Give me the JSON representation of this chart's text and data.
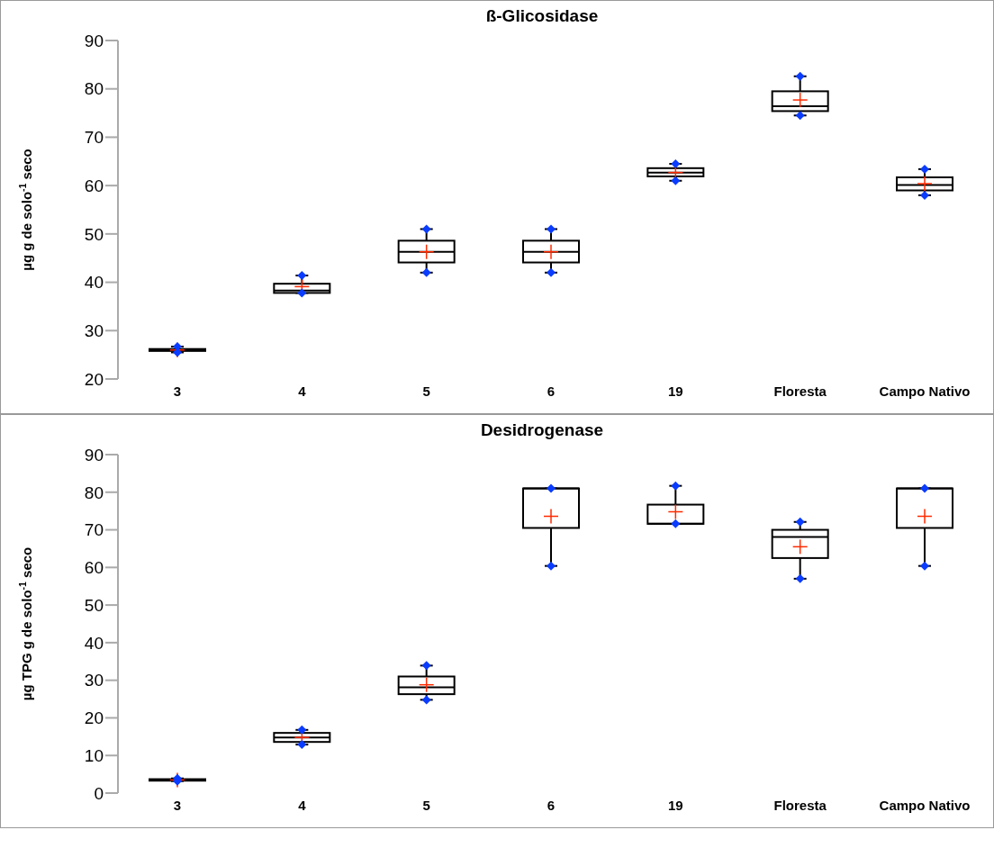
{
  "chart_data": [
    {
      "type": "box",
      "title": "ß-Glicosidase",
      "ylabel": "µg g de solo$^{-1}$ seco",
      "categories": [
        "3",
        "4",
        "5",
        "6",
        "19",
        "Floresta",
        "Campo Nativo"
      ],
      "ylim": [
        20,
        90
      ],
      "yticks": [
        20,
        30,
        40,
        50,
        60,
        70,
        80,
        90
      ],
      "grid": false,
      "boxes": [
        {
          "low": 25.5,
          "q1": 25.8,
          "median": 26,
          "q3": 26.2,
          "high": 26.7,
          "mean": 26
        },
        {
          "low": 37.8,
          "q1": 37.8,
          "median": 38.3,
          "q3": 39.7,
          "high": 41.4,
          "mean": 39.1
        },
        {
          "low": 42,
          "q1": 44.1,
          "median": 46.3,
          "q3": 48.6,
          "high": 51,
          "mean": 46.3
        },
        {
          "low": 42,
          "q1": 44.1,
          "median": 46.3,
          "q3": 48.6,
          "high": 51,
          "mean": 46.3
        },
        {
          "low": 61,
          "q1": 61.9,
          "median": 62.7,
          "q3": 63.6,
          "high": 64.5,
          "mean": 62.7
        },
        {
          "low": 74.5,
          "q1": 75.4,
          "median": 76.4,
          "q3": 79.5,
          "high": 82.6,
          "mean": 77.7
        },
        {
          "low": 58,
          "q1": 59,
          "median": 60.1,
          "q3": 61.7,
          "high": 63.4,
          "mean": 60.4
        }
      ]
    },
    {
      "type": "box",
      "title": "Desidrogenase",
      "ylabel": "µg TPG g de solo$^{-1}$ seco",
      "categories": [
        "3",
        "4",
        "5",
        "6",
        "19",
        "Floresta",
        "Campo Nativo"
      ],
      "ylim": [
        0,
        90
      ],
      "yticks": [
        0,
        10,
        20,
        30,
        40,
        50,
        60,
        70,
        80,
        90
      ],
      "grid": false,
      "boxes": [
        {
          "low": 3.2,
          "q1": 3.3,
          "median": 3.5,
          "q3": 3.7,
          "high": 3.9,
          "mean": 3.5
        },
        {
          "low": 12.9,
          "q1": 13.6,
          "median": 14.8,
          "q3": 16,
          "high": 16.8,
          "mean": 14.8
        },
        {
          "low": 24.8,
          "q1": 26.3,
          "median": 28.1,
          "q3": 31,
          "high": 33.9,
          "mean": 28.8
        },
        {
          "low": 60.4,
          "q1": 70.5,
          "median": 81,
          "q3": 81,
          "high": 81,
          "mean": 73.6
        },
        {
          "low": 71.6,
          "q1": 71.6,
          "median": 71.6,
          "q3": 76.7,
          "high": 81.7,
          "mean": 74.8
        },
        {
          "low": 57,
          "q1": 62.5,
          "median": 68.1,
          "q3": 70,
          "high": 72.1,
          "mean": 65.5
        },
        {
          "low": 60.4,
          "q1": 70.5,
          "median": 81,
          "q3": 81,
          "high": 81,
          "mean": 73.6
        }
      ]
    }
  ]
}
